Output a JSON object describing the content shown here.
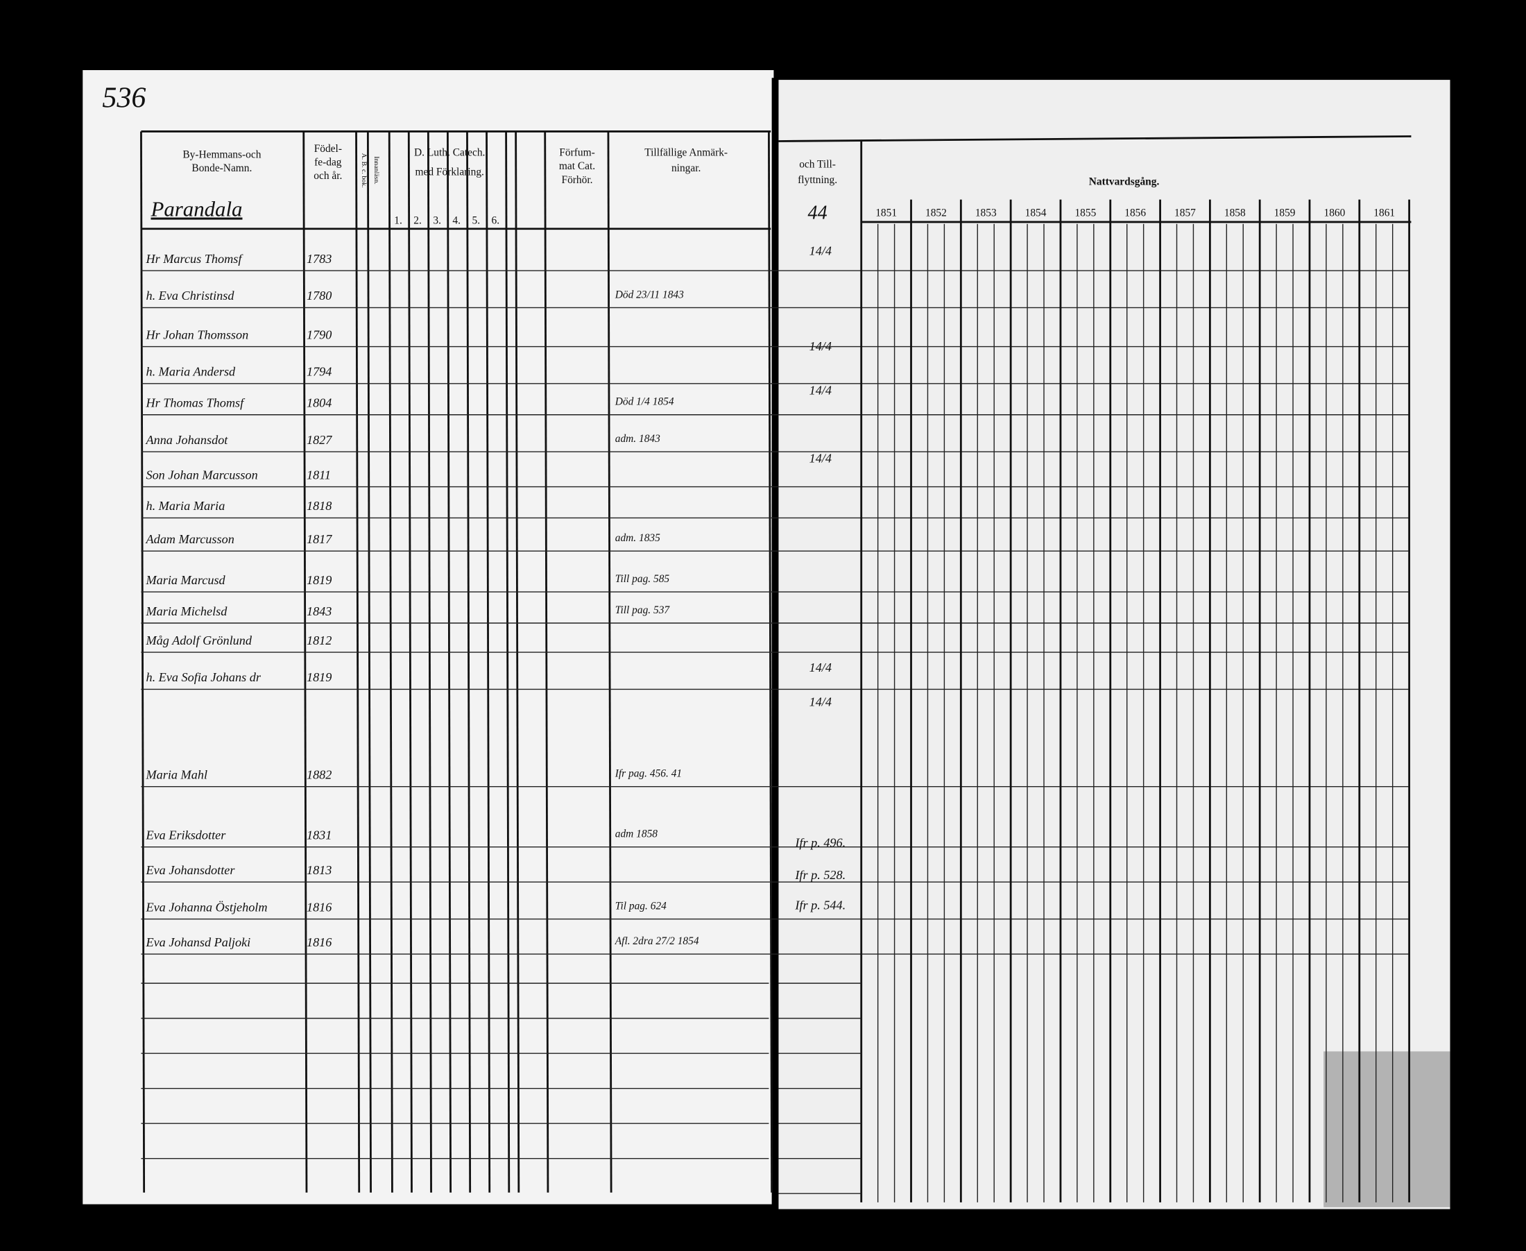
{
  "page_number": "536",
  "left_page": {
    "headers": [
      "By-Hemmans-och",
      "Bonde-Namn.",
      "Födel-",
      "fe-dag",
      "och år.",
      "A. B. c. bok.",
      "Innanläsn.",
      "D. Luth. Catech.",
      "med Förklaring.",
      "Förfum-",
      "mat Cat.",
      "Förhör.",
      "Tillfällige Anmärk-",
      "ningar."
    ],
    "village": "Parandala",
    "catechism_columns": [
      "1.",
      "2.",
      "3.",
      "4.",
      "5.",
      "6."
    ],
    "rows": [
      {
        "name": "Hr Marcus Thomsf",
        "born": "1783"
      },
      {
        "name": "h. Eva Christinsd",
        "born": "1780",
        "note": "Död 23/11 1843"
      },
      {
        "name": "Hr Johan Thomsson",
        "born": "1790"
      },
      {
        "name": "h. Maria Andersd",
        "born": "1794"
      },
      {
        "name": "Hr Thomas Thomsf",
        "born": "1804",
        "note": "Död 1/4 1854"
      },
      {
        "name": "Anna Johansdot",
        "born": "1827",
        "note": "adm. 1843"
      },
      {
        "name": "Son Johan Marcusson",
        "born": "1811"
      },
      {
        "name": "h. Maria Maria",
        "born": "1818"
      },
      {
        "name": "Adam Marcusson",
        "born": "1817",
        "note": "adm. 1835"
      },
      {
        "name": "Maria Marcusd",
        "born": "1819",
        "note": "Till pag. 585"
      },
      {
        "name": "Maria Michelsd",
        "born": "1843",
        "note": "Till pag. 537"
      },
      {
        "name": "Måg Adolf Grönlund",
        "born": "1812"
      },
      {
        "name": "h. Eva Sofia Johans dr",
        "born": "1819"
      },
      {
        "name": "Maria Mahl",
        "born": "1882",
        "note": "Ifr pag. 456. 41"
      },
      {
        "name": "Eva Eriksdotter",
        "born": "1831",
        "note": "adm 1858"
      },
      {
        "name": "Eva Johansdotter",
        "born": "1813"
      },
      {
        "name": "Eva Johanna Östjeholm",
        "born": "1816",
        "note": "Til pag. 624"
      },
      {
        "name": "Eva Johansd Paljoki",
        "born": "1816",
        "note": "Afl. 2dra 27/2 1854"
      }
    ]
  },
  "right_page": {
    "moving_header": [
      "och Till-",
      "flyttning."
    ],
    "moving_count": "44",
    "communion_header": "Nattvardsgång.",
    "years": [
      "1851",
      "1852",
      "1853",
      "1854",
      "1855",
      "1856",
      "1857",
      "1858",
      "1859",
      "1860",
      "1861"
    ],
    "moving_notes": [
      "14/4",
      "14/4",
      "14/4",
      "14/4",
      "14/4",
      "14/4",
      "Ifr p. 496.",
      "Ifr p. 528.",
      "Ifr p. 544."
    ]
  }
}
